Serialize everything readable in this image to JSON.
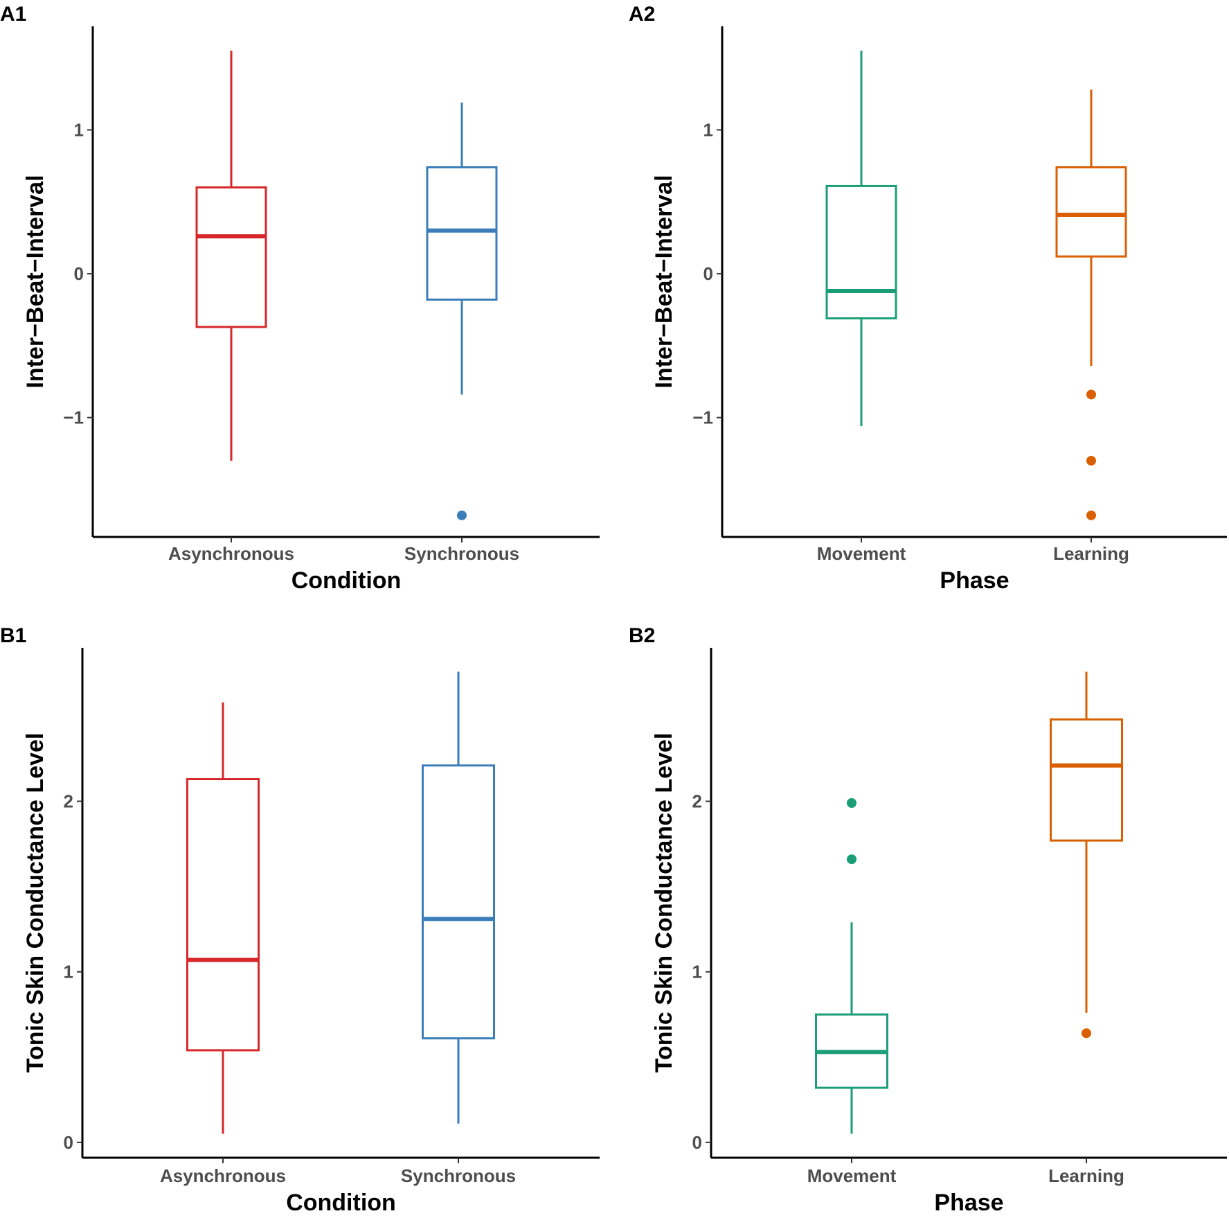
{
  "chart_data": [
    {
      "panel": "A1",
      "type": "boxplot",
      "xlabel": "Condition",
      "ylabel": "Inter−Beat−Interval",
      "ylim": [
        -1.83,
        1.72
      ],
      "yticks": [
        {
          "value": 1,
          "label": "1"
        },
        {
          "value": 0,
          "label": "0"
        },
        {
          "value": -1,
          "label": "−1"
        }
      ],
      "boxes": [
        {
          "category": "Asynchronous",
          "color": "#d7272a",
          "whisker_low": -1.3,
          "q1": -0.37,
          "median": 0.26,
          "q3": 0.6,
          "whisker_high": 1.55,
          "outliers": []
        },
        {
          "category": "Synchronous",
          "color": "#3a7db8",
          "whisker_low": -0.84,
          "q1": -0.18,
          "median": 0.3,
          "q3": 0.74,
          "whisker_high": 1.19,
          "outliers": [
            -1.68
          ]
        }
      ]
    },
    {
      "panel": "A2",
      "type": "boxplot",
      "xlabel": "Phase",
      "ylabel": "Inter−Beat−Interval",
      "ylim": [
        -1.83,
        1.72
      ],
      "yticks": [
        {
          "value": 1,
          "label": "1"
        },
        {
          "value": 0,
          "label": "0"
        },
        {
          "value": -1,
          "label": "−1"
        }
      ],
      "boxes": [
        {
          "category": "Movement",
          "color": "#1b9e77",
          "whisker_low": -1.06,
          "q1": -0.31,
          "median": -0.12,
          "q3": 0.61,
          "whisker_high": 1.55,
          "outliers": []
        },
        {
          "category": "Learning",
          "color": "#d95f02",
          "whisker_low": -0.64,
          "q1": 0.12,
          "median": 0.41,
          "q3": 0.74,
          "whisker_high": 1.28,
          "outliers": [
            -0.84,
            -1.3,
            -1.68
          ]
        }
      ]
    },
    {
      "panel": "B1",
      "type": "boxplot",
      "xlabel": "Condition",
      "ylabel": "Tonic Skin Conductance Level",
      "ylim": [
        -0.09,
        2.9
      ],
      "yticks": [
        {
          "value": 2,
          "label": "2"
        },
        {
          "value": 1,
          "label": "1"
        },
        {
          "value": 0,
          "label": "0"
        }
      ],
      "boxes": [
        {
          "category": "Asynchronous",
          "color": "#d7272a",
          "whisker_low": 0.05,
          "q1": 0.54,
          "median": 1.07,
          "q3": 2.13,
          "whisker_high": 2.58,
          "outliers": []
        },
        {
          "category": "Synchronous",
          "color": "#3a7db8",
          "whisker_low": 0.11,
          "q1": 0.61,
          "median": 1.31,
          "q3": 2.21,
          "whisker_high": 2.76,
          "outliers": []
        }
      ]
    },
    {
      "panel": "B2",
      "type": "boxplot",
      "xlabel": "Phase",
      "ylabel": "Tonic Skin Conductance Level",
      "ylim": [
        -0.09,
        2.9
      ],
      "yticks": [
        {
          "value": 2,
          "label": "2"
        },
        {
          "value": 1,
          "label": "1"
        },
        {
          "value": 0,
          "label": "0"
        }
      ],
      "boxes": [
        {
          "category": "Movement",
          "color": "#1b9e77",
          "whisker_low": 0.05,
          "q1": 0.32,
          "median": 0.53,
          "q3": 0.75,
          "whisker_high": 1.29,
          "outliers": [
            1.99,
            1.66
          ]
        },
        {
          "category": "Learning",
          "color": "#d95f02",
          "whisker_low": 0.76,
          "q1": 1.77,
          "median": 2.21,
          "q3": 2.48,
          "whisker_high": 2.76,
          "outliers": [
            0.64
          ]
        }
      ]
    }
  ]
}
